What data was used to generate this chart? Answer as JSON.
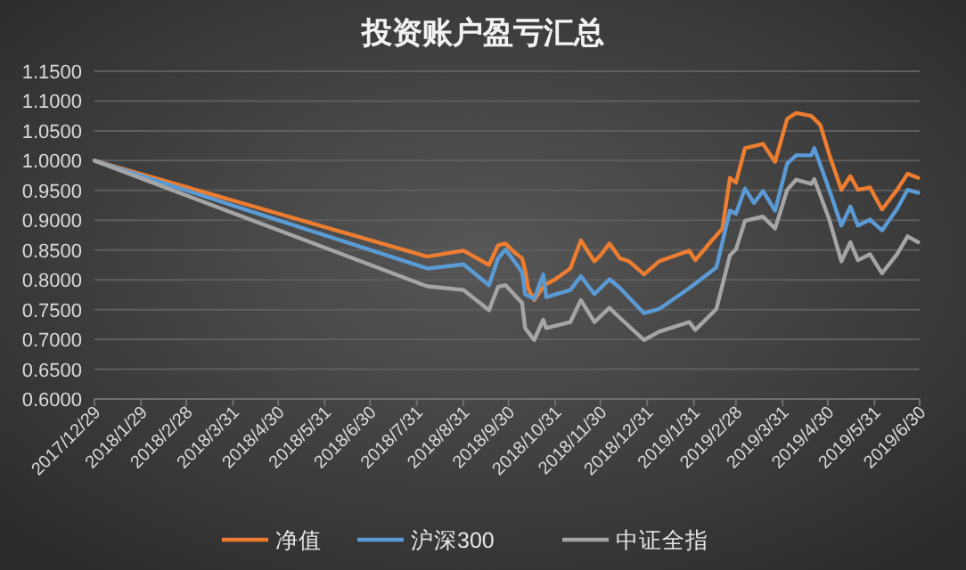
{
  "chart_data": {
    "type": "line",
    "title": "投资账户盈亏汇总",
    "xlim": [
      "2017-12-29",
      "2019-06-30"
    ],
    "xticks": [
      {
        "value": "2017-12-29",
        "label": "2017/12/29"
      },
      {
        "value": "2018-01-29",
        "label": "2018/1/29"
      },
      {
        "value": "2018-02-28",
        "label": "2018/2/28"
      },
      {
        "value": "2018-03-31",
        "label": "2018/3/31"
      },
      {
        "value": "2018-04-30",
        "label": "2018/4/30"
      },
      {
        "value": "2018-05-31",
        "label": "2018/5/31"
      },
      {
        "value": "2018-06-30",
        "label": "2018/6/30"
      },
      {
        "value": "2018-07-31",
        "label": "2018/7/31"
      },
      {
        "value": "2018-08-31",
        "label": "2018/8/31"
      },
      {
        "value": "2018-09-30",
        "label": "2018/9/30"
      },
      {
        "value": "2018-10-31",
        "label": "2018/10/31"
      },
      {
        "value": "2018-11-30",
        "label": "2018/11/30"
      },
      {
        "value": "2018-12-31",
        "label": "2018/12/31"
      },
      {
        "value": "2019-01-31",
        "label": "2019/1/31"
      },
      {
        "value": "2019-02-28",
        "label": "2019/2/28"
      },
      {
        "value": "2019-03-31",
        "label": "2019/3/31"
      },
      {
        "value": "2019-04-30",
        "label": "2019/4/30"
      },
      {
        "value": "2019-05-31",
        "label": "2019/5/31"
      },
      {
        "value": "2019-06-30",
        "label": "2019/6/30"
      }
    ],
    "ylim": [
      0.6,
      1.15
    ],
    "yticks": [
      {
        "value": 0.6,
        "label": "0.6000"
      },
      {
        "value": 0.65,
        "label": "0.6500"
      },
      {
        "value": 0.7,
        "label": "0.7000"
      },
      {
        "value": 0.75,
        "label": "0.7500"
      },
      {
        "value": 0.8,
        "label": "0.8000"
      },
      {
        "value": 0.85,
        "label": "0.8500"
      },
      {
        "value": 0.9,
        "label": "0.9000"
      },
      {
        "value": 0.95,
        "label": "0.9500"
      },
      {
        "value": 1.0,
        "label": "1.0000"
      },
      {
        "value": 1.05,
        "label": "1.0500"
      },
      {
        "value": 1.1,
        "label": "1.1000"
      },
      {
        "value": 1.15,
        "label": "1.1500"
      }
    ],
    "grid": "y",
    "legend": "bottom",
    "series": [
      {
        "name": "净值",
        "color": "#ed7d31",
        "x": [
          "2017-12-29",
          "2018-08-07",
          "2018-08-31",
          "2018-09-17",
          "2018-09-23",
          "2018-09-28",
          "2018-10-03",
          "2018-10-09",
          "2018-10-11",
          "2018-10-13",
          "2018-10-17",
          "2018-10-21",
          "2018-10-24",
          "2018-10-31",
          "2018-11-10",
          "2018-11-17",
          "2018-11-26",
          "2018-11-30",
          "2018-12-06",
          "2018-12-13",
          "2018-12-19",
          "2018-12-29",
          "2019-01-08",
          "2019-01-28",
          "2019-02-01",
          "2019-02-11",
          "2019-02-19",
          "2019-02-24",
          "2019-02-28",
          "2019-03-06",
          "2019-03-18",
          "2019-03-26",
          "2019-04-03",
          "2019-04-09",
          "2019-04-19",
          "2019-04-25",
          "2019-05-01",
          "2019-05-09",
          "2019-05-15",
          "2019-05-20",
          "2019-05-28",
          "2019-06-05",
          "2019-06-15",
          "2019-06-22",
          "2019-06-29"
        ],
        "values": [
          1.0,
          0.839,
          0.849,
          0.825,
          0.858,
          0.861,
          0.848,
          0.836,
          0.816,
          0.786,
          0.766,
          0.781,
          0.791,
          0.801,
          0.819,
          0.866,
          0.831,
          0.841,
          0.861,
          0.836,
          0.831,
          0.809,
          0.831,
          0.849,
          0.833,
          0.863,
          0.886,
          0.971,
          0.963,
          1.021,
          1.028,
          0.998,
          1.07,
          1.08,
          1.075,
          1.06,
          1.01,
          0.951,
          0.974,
          0.951,
          0.955,
          0.918,
          0.951,
          0.978,
          0.971
        ]
      },
      {
        "name": "沪深300",
        "color": "#5b9bd5",
        "x": [
          "2017-12-29",
          "2018-08-07",
          "2018-08-31",
          "2018-09-17",
          "2018-09-23",
          "2018-09-28",
          "2018-10-09",
          "2018-10-11",
          "2018-10-17",
          "2018-10-23",
          "2018-10-25",
          "2018-11-10",
          "2018-11-17",
          "2018-11-26",
          "2018-12-06",
          "2018-12-13",
          "2018-12-29",
          "2019-01-08",
          "2019-01-28",
          "2019-02-15",
          "2019-02-24",
          "2019-02-28",
          "2019-03-06",
          "2019-03-12",
          "2019-03-18",
          "2019-03-26",
          "2019-04-03",
          "2019-04-09",
          "2019-04-19",
          "2019-04-21",
          "2019-05-01",
          "2019-05-09",
          "2019-05-15",
          "2019-05-20",
          "2019-05-28",
          "2019-06-05",
          "2019-06-15",
          "2019-06-22",
          "2019-06-29"
        ],
        "values": [
          1.0,
          0.819,
          0.826,
          0.791,
          0.836,
          0.851,
          0.813,
          0.776,
          0.768,
          0.809,
          0.771,
          0.783,
          0.806,
          0.776,
          0.801,
          0.786,
          0.744,
          0.751,
          0.786,
          0.821,
          0.916,
          0.911,
          0.953,
          0.929,
          0.949,
          0.916,
          0.995,
          1.009,
          1.009,
          1.021,
          0.951,
          0.891,
          0.923,
          0.891,
          0.901,
          0.883,
          0.919,
          0.951,
          0.946
        ]
      },
      {
        "name": "中证全指",
        "color": "#a5a5a5",
        "x": [
          "2017-12-29",
          "2018-08-07",
          "2018-08-31",
          "2018-09-17",
          "2018-09-23",
          "2018-09-28",
          "2018-10-09",
          "2018-10-11",
          "2018-10-17",
          "2018-10-23",
          "2018-10-25",
          "2018-11-10",
          "2018-11-17",
          "2018-11-26",
          "2018-12-06",
          "2018-12-13",
          "2018-12-29",
          "2019-01-08",
          "2019-01-28",
          "2019-02-01",
          "2019-02-15",
          "2019-02-24",
          "2019-02-28",
          "2019-03-06",
          "2019-03-18",
          "2019-03-26",
          "2019-04-03",
          "2019-04-09",
          "2019-04-19",
          "2019-04-21",
          "2019-05-01",
          "2019-05-09",
          "2019-05-15",
          "2019-05-20",
          "2019-05-28",
          "2019-06-05",
          "2019-06-15",
          "2019-06-22",
          "2019-06-29"
        ],
        "values": [
          1.0,
          0.789,
          0.783,
          0.749,
          0.788,
          0.791,
          0.761,
          0.719,
          0.699,
          0.733,
          0.719,
          0.729,
          0.766,
          0.729,
          0.753,
          0.736,
          0.699,
          0.713,
          0.729,
          0.716,
          0.751,
          0.841,
          0.851,
          0.899,
          0.906,
          0.886,
          0.951,
          0.968,
          0.961,
          0.969,
          0.901,
          0.831,
          0.863,
          0.833,
          0.843,
          0.811,
          0.843,
          0.873,
          0.863
        ]
      }
    ]
  }
}
